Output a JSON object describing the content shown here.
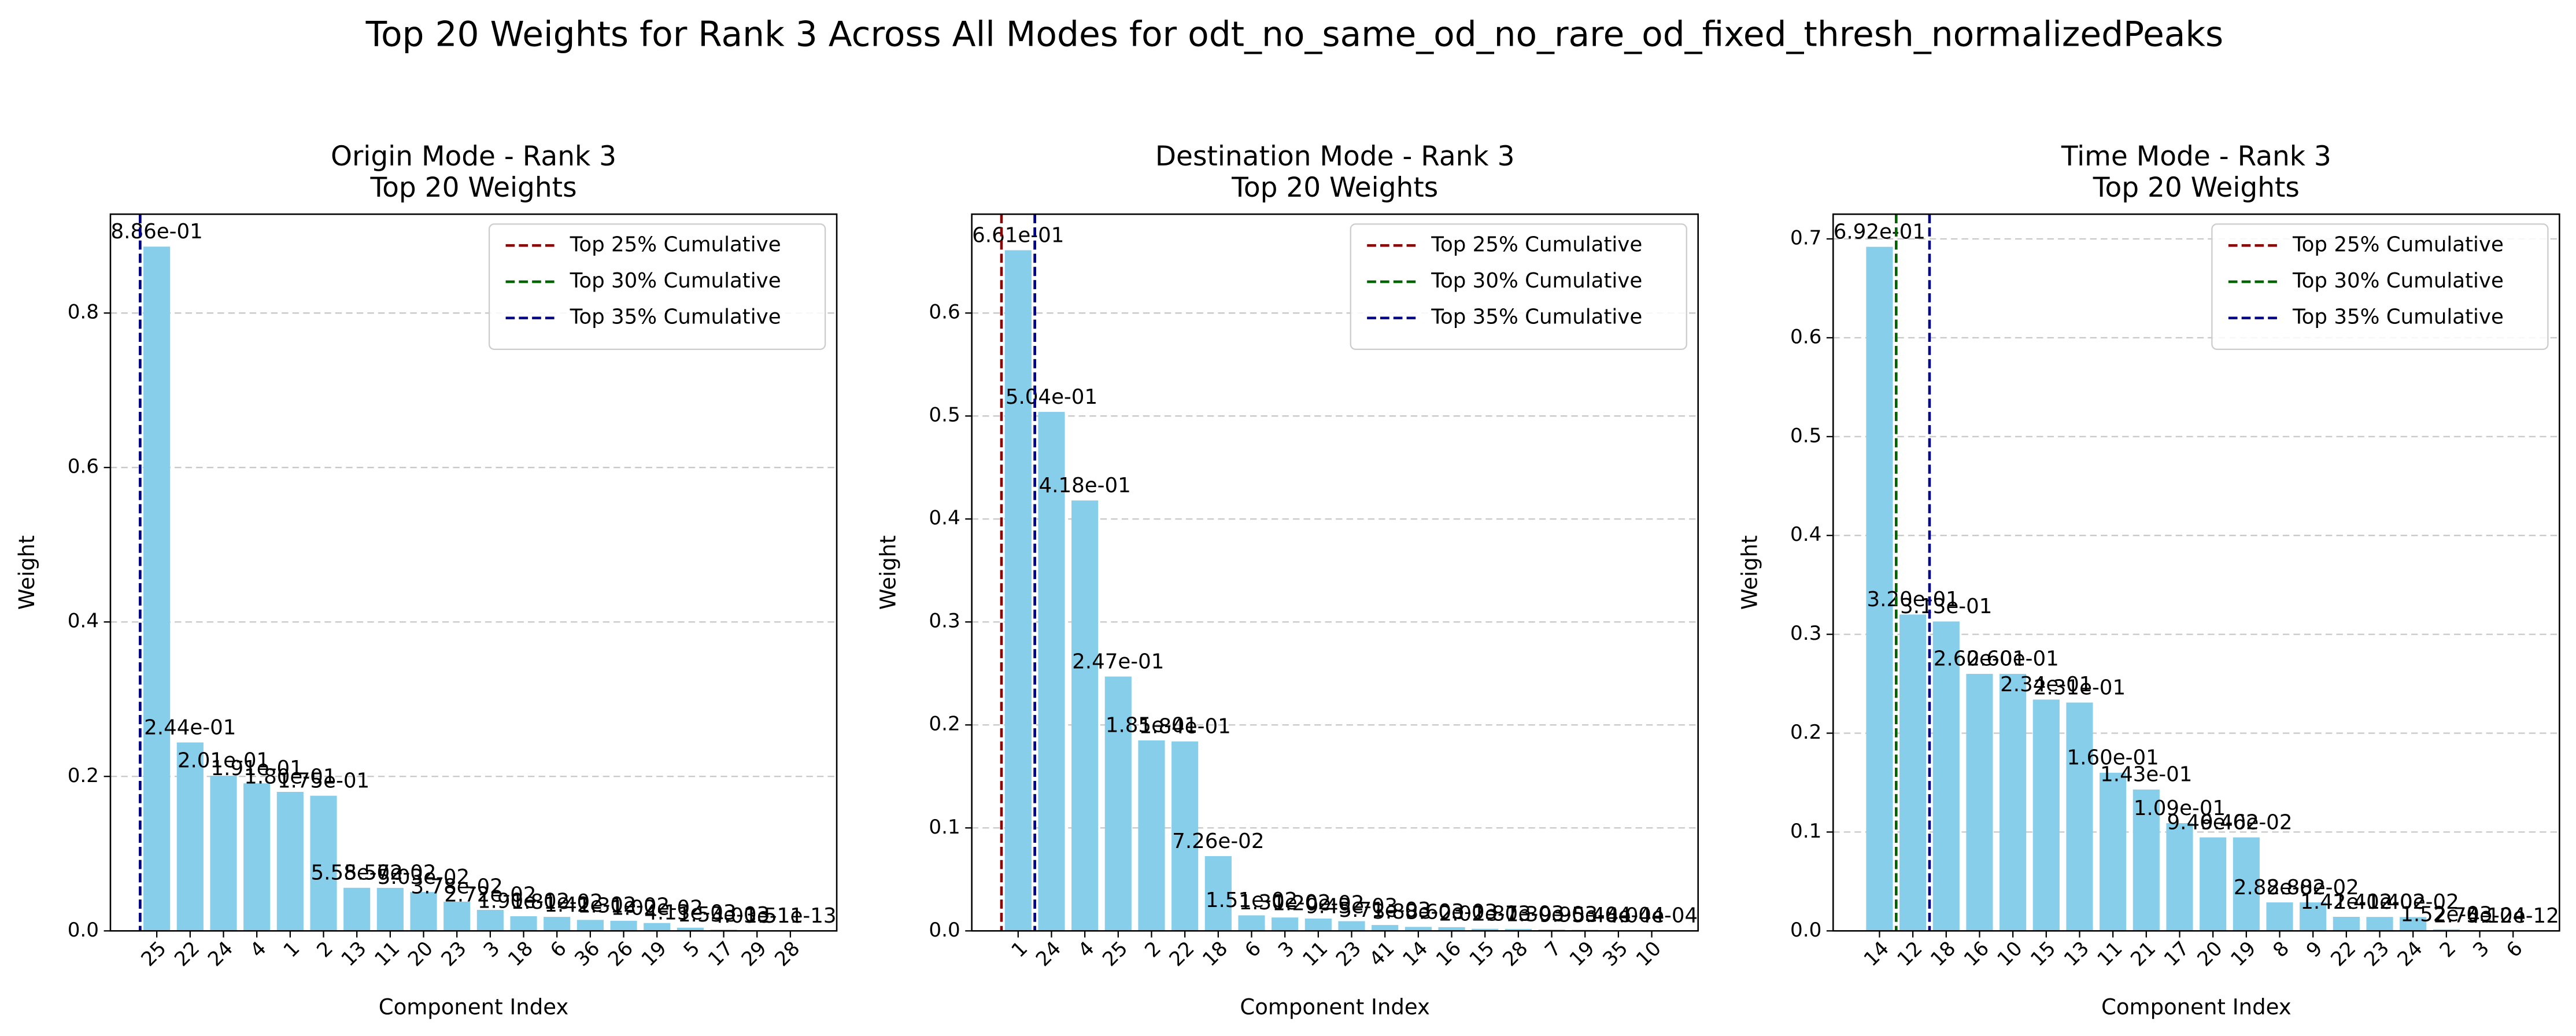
{
  "title": "Top 20 Weights for Rank 3 Across All Modes for odt_no_same_od_no_rare_od_fixed_thresh_normalizedPeaks",
  "chart_data": [
    {
      "type": "bar",
      "title": "Origin Mode - Rank 3",
      "subtitle": "Top 20 Weights",
      "xlabel": "Component Index",
      "ylabel": "Weight",
      "color": "#87ceeb",
      "grid": true,
      "legend": "upper right",
      "categories": [
        "25",
        "22",
        "24",
        "4",
        "1",
        "2",
        "13",
        "11",
        "20",
        "23",
        "3",
        "18",
        "6",
        "36",
        "26",
        "19",
        "5",
        "17",
        "29",
        "28"
      ],
      "values": [
        0.886,
        0.244,
        0.201,
        0.191,
        0.18,
        0.175,
        0.0558,
        0.0557,
        0.0503,
        0.0378,
        0.0272,
        0.019,
        0.0181,
        0.0142,
        0.0131,
        0.0102,
        0.00413,
        0.00153,
        4.03e-11,
        1.51e-13
      ],
      "value_labels": [
        "8.86e-01",
        "2.44e-01",
        "2.01e-01",
        "1.91e-01",
        "1.80e-01",
        "1.75e-01",
        "5.58e-02",
        "5.57e-02",
        "5.03e-02",
        "3.78e-02",
        "2.72e-02",
        "1.90e-02",
        "1.81e-02",
        "1.42e-02",
        "1.31e-02",
        "1.02e-02",
        "4.13e-03",
        "1.53e-03",
        "4.03e-11",
        "1.51e-13"
      ],
      "ylim": [
        0,
        0.928
      ],
      "yticks": [
        {
          "value": 0,
          "label": "0.0"
        },
        0.2,
        0.4,
        0.6,
        0.8
      ],
      "vlines": [
        {
          "name": "Top 25% Cumulative",
          "color": "#8b0000",
          "x": -0.5
        },
        {
          "name": "Top 30% Cumulative",
          "color": "#006400",
          "x": -0.5
        },
        {
          "name": "Top 35% Cumulative",
          "color": "#00008b",
          "x": -0.5
        }
      ]
    },
    {
      "type": "bar",
      "title": "Destination Mode - Rank 3",
      "subtitle": "Top 20 Weights",
      "xlabel": "Component Index",
      "ylabel": "Weight",
      "color": "#87ceeb",
      "grid": true,
      "legend": "upper right",
      "categories": [
        "1",
        "24",
        "4",
        "25",
        "2",
        "22",
        "18",
        "6",
        "3",
        "11",
        "23",
        "41",
        "14",
        "16",
        "15",
        "28",
        "7",
        "19",
        "35",
        "10"
      ],
      "values": [
        0.661,
        0.504,
        0.418,
        0.247,
        0.185,
        0.184,
        0.0726,
        0.0151,
        0.013,
        0.012,
        0.00943,
        0.00571,
        0.00388,
        0.0036,
        0.00202,
        0.00187,
        0.0013,
        0.000995,
        0.000548,
        0.000404
      ],
      "value_labels": [
        "6.61e-01",
        "5.04e-01",
        "4.18e-01",
        "2.47e-01",
        "1.85e-01",
        "1.84e-01",
        "7.26e-02",
        "1.51e-02",
        "1.30e-02",
        "1.20e-02",
        "9.43e-03",
        "5.71e-03",
        "3.88e-03",
        "3.60e-03",
        "2.02e-03",
        "1.87e-03",
        "1.30e-03",
        "9.95e-04",
        "5.48e-04",
        "4.04e-04"
      ],
      "ylim": [
        0,
        0.696
      ],
      "yticks": [
        {
          "value": 0,
          "label": "0.0"
        },
        0.1,
        0.2,
        0.3,
        0.4,
        0.5,
        0.6
      ],
      "vlines": [
        {
          "name": "Top 25% Cumulative",
          "color": "#8b0000",
          "x": -0.5
        },
        {
          "name": "Top 30% Cumulative",
          "color": "#006400",
          "x": 0.5
        },
        {
          "name": "Top 35% Cumulative",
          "color": "#00008b",
          "x": 0.5
        }
      ]
    },
    {
      "type": "bar",
      "title": "Time Mode - Rank 3",
      "subtitle": "Top 20 Weights",
      "xlabel": "Component Index",
      "ylabel": "Weight",
      "color": "#87ceeb",
      "grid": true,
      "legend": "upper right",
      "categories": [
        "14",
        "12",
        "18",
        "16",
        "10",
        "15",
        "13",
        "11",
        "21",
        "17",
        "20",
        "19",
        "8",
        "9",
        "22",
        "23",
        "24",
        "2",
        "3",
        "6"
      ],
      "values": [
        0.692,
        0.32,
        0.313,
        0.26,
        0.26,
        0.234,
        0.231,
        0.16,
        0.143,
        0.109,
        0.0946,
        0.0946,
        0.0288,
        0.0288,
        0.0142,
        0.0141,
        0.014,
        0.00152,
        0.000275,
        4.12e-12
      ],
      "value_labels": [
        "6.92e-01",
        "3.20e-01",
        "3.13e-01",
        "2.60e-01",
        "2.60e-01",
        "2.34e-01",
        "2.31e-01",
        "1.60e-01",
        "1.43e-01",
        "1.09e-01",
        "9.46e-02",
        "9.46e-02",
        "2.88e-02",
        "2.88e-02",
        "1.42e-02",
        "1.41e-02",
        "1.40e-02",
        "1.52e-03",
        "2.75e-04",
        "4.12e-12"
      ],
      "ylim": [
        0,
        0.725
      ],
      "yticks": [
        {
          "value": 0,
          "label": "0.0"
        },
        0.1,
        0.2,
        0.3,
        0.4,
        0.5,
        0.6,
        0.7
      ],
      "vlines": [
        {
          "name": "Top 25% Cumulative",
          "color": "#8b0000",
          "x": 0.5
        },
        {
          "name": "Top 30% Cumulative",
          "color": "#006400",
          "x": 0.5
        },
        {
          "name": "Top 35% Cumulative",
          "color": "#00008b",
          "x": 1.5
        }
      ]
    }
  ]
}
